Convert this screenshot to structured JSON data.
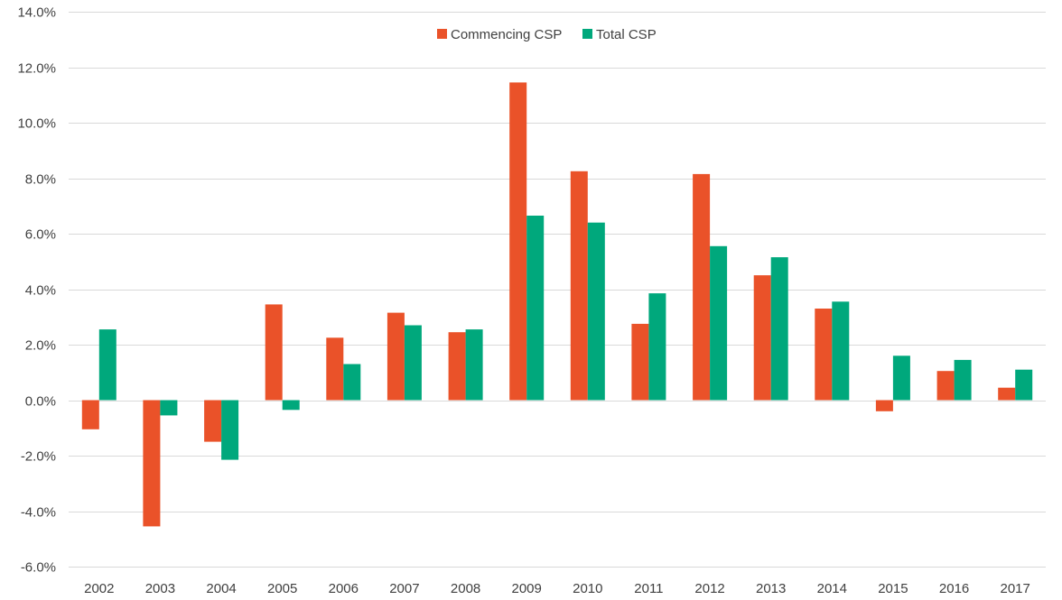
{
  "chart_data": {
    "type": "bar",
    "categories": [
      "2002",
      "2003",
      "2004",
      "2005",
      "2006",
      "2007",
      "2008",
      "2009",
      "2010",
      "2011",
      "2012",
      "2013",
      "2014",
      "2015",
      "2016",
      "2017"
    ],
    "series": [
      {
        "name": "Commencing CSP",
        "color": "#ea5229",
        "values": [
          -1.05,
          -4.55,
          -1.5,
          3.45,
          2.25,
          3.15,
          2.45,
          11.45,
          8.25,
          2.75,
          8.15,
          4.5,
          3.3,
          -0.4,
          1.05,
          0.45
        ]
      },
      {
        "name": "Total CSP",
        "color": "#00a87c",
        "values": [
          2.55,
          -0.55,
          -2.15,
          -0.35,
          1.3,
          2.7,
          2.55,
          6.65,
          6.4,
          3.85,
          5.55,
          5.15,
          3.55,
          1.6,
          1.45,
          1.1
        ]
      }
    ],
    "ylim": [
      -6,
      14
    ],
    "ytick_step": 2,
    "ytick_labels": [
      "-6.0%",
      "-4.0%",
      "-2.0%",
      "0.0%",
      "2.0%",
      "4.0%",
      "6.0%",
      "8.0%",
      "10.0%",
      "12.0%",
      "14.0%"
    ],
    "title": "",
    "xlabel": "",
    "ylabel": "",
    "grid": true,
    "legend_position": "top-center"
  }
}
